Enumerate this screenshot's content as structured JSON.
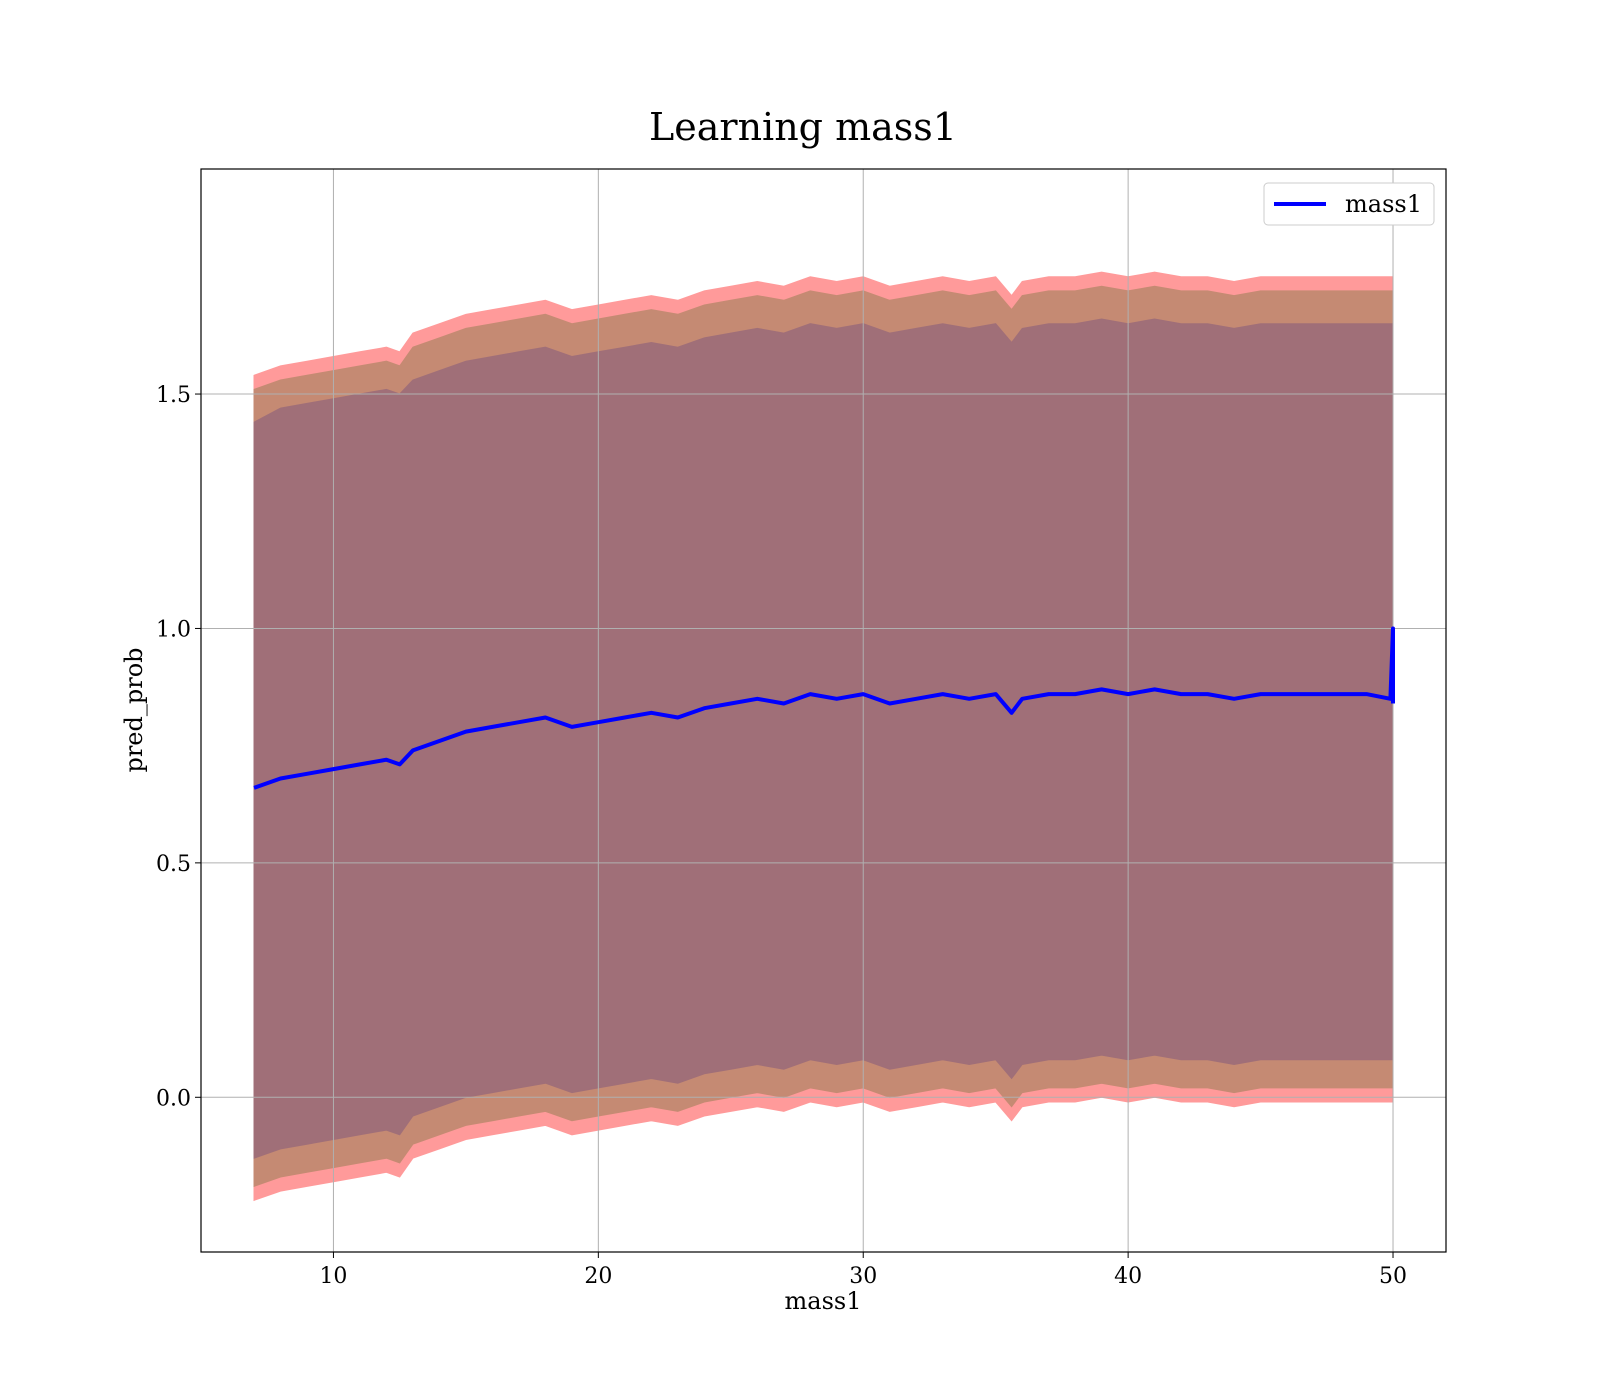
{
  "chart_data": {
    "type": "line",
    "title": "Learning mass1",
    "xlabel": "mass1",
    "ylabel": "pred_prob",
    "xlim": [
      5,
      52
    ],
    "ylim": [
      -0.33,
      1.98
    ],
    "xticks": [
      10,
      20,
      30,
      40,
      50
    ],
    "yticks": [
      0.0,
      0.5,
      1.0,
      1.5
    ],
    "xtick_labels": [
      "10",
      "20",
      "30",
      "40",
      "50"
    ],
    "ytick_labels": [
      "0.0",
      "0.5",
      "1.0",
      "1.5"
    ],
    "grid": true,
    "legend": {
      "position": "top-right",
      "entries": [
        "mass1"
      ]
    },
    "colors": {
      "line": "#0000ff",
      "band_outer": "#ff9a9a",
      "band_middle": "#c58a73",
      "band_inner": "#a06f78",
      "grid": "#b0b0b0"
    },
    "series": [
      {
        "name": "mass1",
        "x": [
          7.0,
          8,
          9,
          10,
          11,
          12,
          12.5,
          13,
          14,
          15,
          16,
          17,
          18,
          19,
          20,
          21,
          22,
          23,
          24,
          25,
          26,
          27,
          28,
          29,
          30,
          31,
          32,
          33,
          34,
          35,
          35.6,
          36,
          37,
          38,
          39,
          40,
          41,
          42,
          43,
          44,
          45,
          46,
          47,
          48,
          49,
          49.9,
          50.0,
          50.0
        ],
        "y": [
          0.66,
          0.68,
          0.69,
          0.7,
          0.71,
          0.72,
          0.71,
          0.74,
          0.76,
          0.78,
          0.79,
          0.8,
          0.81,
          0.79,
          0.8,
          0.81,
          0.82,
          0.81,
          0.83,
          0.84,
          0.85,
          0.84,
          0.86,
          0.85,
          0.86,
          0.84,
          0.85,
          0.86,
          0.85,
          0.86,
          0.82,
          0.85,
          0.86,
          0.86,
          0.87,
          0.86,
          0.87,
          0.86,
          0.86,
          0.85,
          0.86,
          0.86,
          0.86,
          0.86,
          0.86,
          0.85,
          1.0,
          0.84
        ]
      }
    ],
    "uncertainty_bands": {
      "x": [
        7.0,
        8,
        9,
        10,
        11,
        12,
        12.5,
        13,
        14,
        15,
        16,
        17,
        18,
        19,
        20,
        21,
        22,
        23,
        24,
        25,
        26,
        27,
        28,
        29,
        30,
        31,
        32,
        33,
        34,
        35,
        35.6,
        36,
        37,
        38,
        39,
        40,
        41,
        42,
        43,
        44,
        45,
        46,
        47,
        48,
        49,
        50
      ],
      "inner_upper": [
        1.44,
        1.47,
        1.48,
        1.49,
        1.5,
        1.51,
        1.5,
        1.53,
        1.55,
        1.57,
        1.58,
        1.59,
        1.6,
        1.58,
        1.59,
        1.6,
        1.61,
        1.6,
        1.62,
        1.63,
        1.64,
        1.63,
        1.65,
        1.64,
        1.65,
        1.63,
        1.64,
        1.65,
        1.64,
        1.65,
        1.61,
        1.64,
        1.65,
        1.65,
        1.66,
        1.65,
        1.66,
        1.65,
        1.65,
        1.64,
        1.65,
        1.65,
        1.65,
        1.65,
        1.65,
        1.65
      ],
      "middle_upper": [
        1.51,
        1.53,
        1.54,
        1.55,
        1.56,
        1.57,
        1.56,
        1.6,
        1.62,
        1.64,
        1.65,
        1.66,
        1.67,
        1.65,
        1.66,
        1.67,
        1.68,
        1.67,
        1.69,
        1.7,
        1.71,
        1.7,
        1.72,
        1.71,
        1.72,
        1.7,
        1.71,
        1.72,
        1.71,
        1.72,
        1.68,
        1.71,
        1.72,
        1.72,
        1.73,
        1.72,
        1.73,
        1.72,
        1.72,
        1.71,
        1.72,
        1.72,
        1.72,
        1.72,
        1.72,
        1.72
      ],
      "outer_upper": [
        1.54,
        1.56,
        1.57,
        1.58,
        1.59,
        1.6,
        1.59,
        1.63,
        1.65,
        1.67,
        1.68,
        1.69,
        1.7,
        1.68,
        1.69,
        1.7,
        1.71,
        1.7,
        1.72,
        1.73,
        1.74,
        1.73,
        1.75,
        1.74,
        1.75,
        1.73,
        1.74,
        1.75,
        1.74,
        1.75,
        1.71,
        1.74,
        1.75,
        1.75,
        1.76,
        1.75,
        1.76,
        1.75,
        1.75,
        1.74,
        1.75,
        1.75,
        1.75,
        1.75,
        1.75,
        1.75
      ],
      "inner_lower": [
        -0.13,
        -0.11,
        -0.1,
        -0.09,
        -0.08,
        -0.07,
        -0.08,
        -0.04,
        -0.02,
        0.0,
        0.01,
        0.02,
        0.03,
        0.01,
        0.02,
        0.03,
        0.04,
        0.03,
        0.05,
        0.06,
        0.07,
        0.06,
        0.08,
        0.07,
        0.08,
        0.06,
        0.07,
        0.08,
        0.07,
        0.08,
        0.04,
        0.07,
        0.08,
        0.08,
        0.09,
        0.08,
        0.09,
        0.08,
        0.08,
        0.07,
        0.08,
        0.08,
        0.08,
        0.08,
        0.08,
        0.08
      ],
      "middle_lower": [
        -0.19,
        -0.17,
        -0.16,
        -0.15,
        -0.14,
        -0.13,
        -0.14,
        -0.1,
        -0.08,
        -0.06,
        -0.05,
        -0.04,
        -0.03,
        -0.05,
        -0.04,
        -0.03,
        -0.02,
        -0.03,
        -0.01,
        0.0,
        0.01,
        0.0,
        0.02,
        0.01,
        0.02,
        0.0,
        0.01,
        0.02,
        0.01,
        0.02,
        -0.02,
        0.01,
        0.02,
        0.02,
        0.03,
        0.02,
        0.03,
        0.02,
        0.02,
        0.01,
        0.02,
        0.02,
        0.02,
        0.02,
        0.02,
        0.02
      ],
      "outer_lower": [
        -0.22,
        -0.2,
        -0.19,
        -0.18,
        -0.17,
        -0.16,
        -0.17,
        -0.13,
        -0.11,
        -0.09,
        -0.08,
        -0.07,
        -0.06,
        -0.08,
        -0.07,
        -0.06,
        -0.05,
        -0.06,
        -0.04,
        -0.03,
        -0.02,
        -0.03,
        -0.01,
        -0.02,
        -0.01,
        -0.03,
        -0.02,
        -0.01,
        -0.02,
        -0.01,
        -0.05,
        -0.02,
        -0.01,
        -0.01,
        0.0,
        -0.01,
        0.0,
        -0.01,
        -0.01,
        -0.02,
        -0.01,
        -0.01,
        -0.01,
        -0.01,
        -0.01,
        -0.01
      ]
    }
  }
}
